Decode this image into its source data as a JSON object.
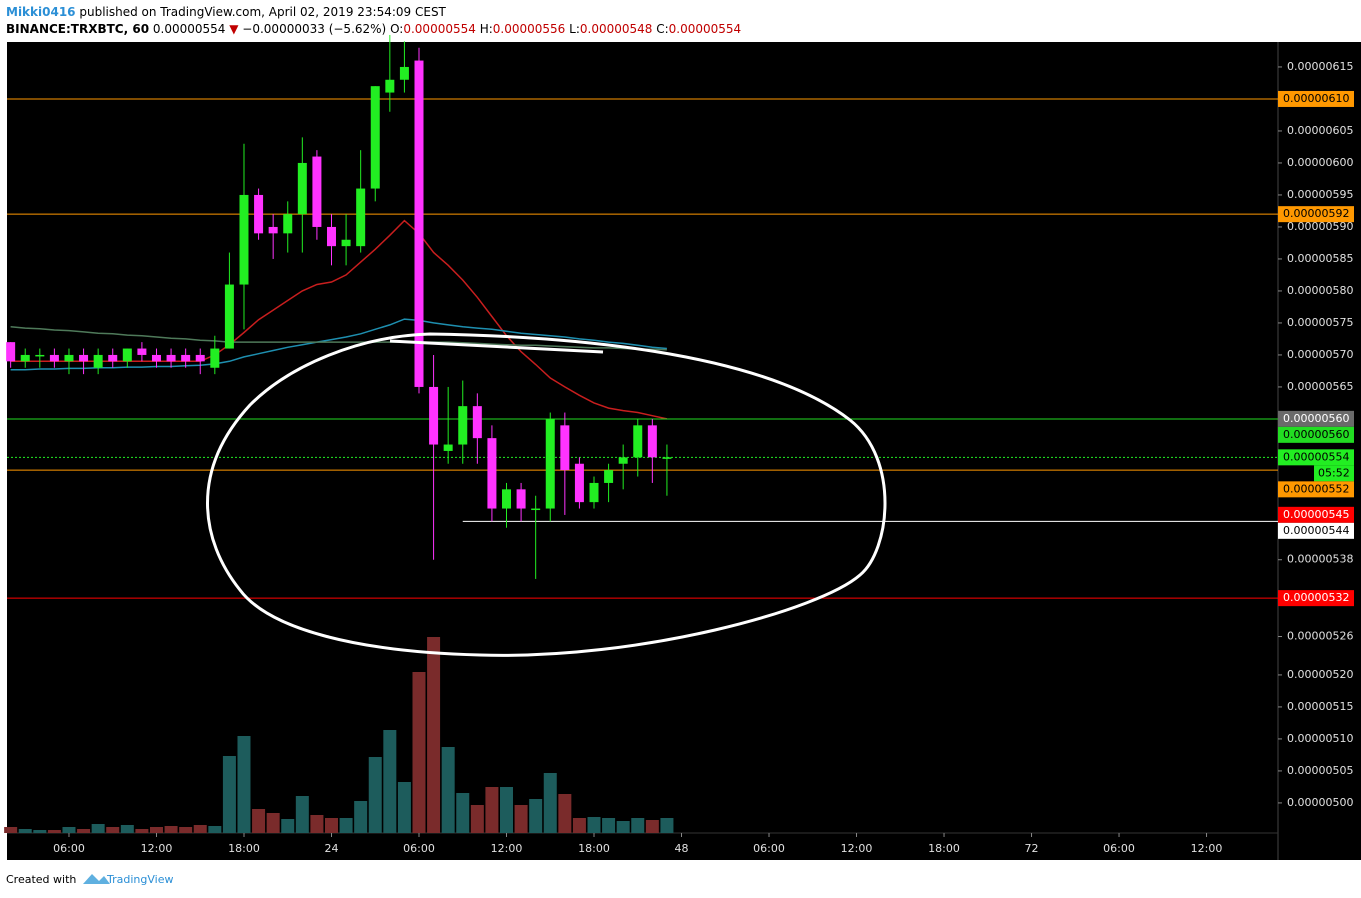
{
  "header": {
    "author": "Mikki0416",
    "published": "published on TradingView.com, April 02, 2019 23:54:09 CEST",
    "symbol": "BINANCE:TRXBTC, 60",
    "last": "0.00000554",
    "change": "−0.00000033 (−5.62%)",
    "o_label": "O:",
    "o": "0.00000554",
    "h_label": "H:",
    "h": "0.00000556",
    "l_label": "L:",
    "l": "0.00000548",
    "c_label": "C:",
    "c": "0.00000554"
  },
  "chart_data": {
    "type": "candlestick",
    "x": [
      2,
      3,
      4,
      5,
      6,
      7,
      8,
      9,
      10,
      11,
      12,
      13,
      14,
      15,
      16,
      17,
      18,
      19,
      20,
      21,
      22,
      23,
      24,
      25,
      26,
      27,
      28,
      29,
      30,
      31,
      32,
      33,
      34,
      35,
      36,
      37,
      38,
      39,
      40,
      41,
      42,
      43,
      44,
      45,
      46,
      47
    ],
    "open": [
      5.72e-06,
      5.69e-06,
      5.7e-06,
      5.7e-06,
      5.69e-06,
      5.7e-06,
      5.68e-06,
      5.7e-06,
      5.69e-06,
      5.71e-06,
      5.7e-06,
      5.7e-06,
      5.7e-06,
      5.7e-06,
      5.68e-06,
      5.71e-06,
      5.81e-06,
      5.95e-06,
      5.9e-06,
      5.89e-06,
      5.92e-06,
      6.01e-06,
      5.9e-06,
      5.87e-06,
      5.87e-06,
      5.96e-06,
      6.11e-06,
      6.13e-06,
      6.16e-06,
      5.65e-06,
      5.55e-06,
      5.56e-06,
      5.62e-06,
      5.57e-06,
      5.46e-06,
      5.49e-06,
      5.46e-06,
      5.46e-06,
      5.59e-06,
      5.53e-06,
      5.47e-06,
      5.5e-06,
      5.53e-06,
      5.54e-06,
      5.59e-06,
      5.54e-06
    ],
    "high": [
      5.72e-06,
      5.71e-06,
      5.71e-06,
      5.71e-06,
      5.71e-06,
      5.71e-06,
      5.71e-06,
      5.71e-06,
      5.71e-06,
      5.72e-06,
      5.71e-06,
      5.71e-06,
      5.71e-06,
      5.71e-06,
      5.73e-06,
      5.86e-06,
      6.03e-06,
      5.96e-06,
      5.92e-06,
      5.94e-06,
      6.04e-06,
      6.02e-06,
      5.92e-06,
      5.92e-06,
      6.02e-06,
      6.12e-06,
      6.2e-06,
      6.19e-06,
      6.18e-06,
      5.7e-06,
      5.65e-06,
      5.66e-06,
      5.64e-06,
      5.59e-06,
      5.5e-06,
      5.5e-06,
      5.48e-06,
      5.61e-06,
      5.61e-06,
      5.54e-06,
      5.51e-06,
      5.53e-06,
      5.56e-06,
      5.6e-06,
      5.6e-06,
      5.56e-06
    ],
    "low": [
      5.68e-06,
      5.68e-06,
      5.68e-06,
      5.68e-06,
      5.67e-06,
      5.67e-06,
      5.67e-06,
      5.68e-06,
      5.68e-06,
      5.69e-06,
      5.68e-06,
      5.68e-06,
      5.68e-06,
      5.67e-06,
      5.67e-06,
      5.71e-06,
      5.74e-06,
      5.88e-06,
      5.85e-06,
      5.86e-06,
      5.86e-06,
      5.88e-06,
      5.84e-06,
      5.84e-06,
      5.86e-06,
      5.94e-06,
      6.08e-06,
      6.11e-06,
      5.64e-06,
      5.38e-06,
      5.53e-06,
      5.53e-06,
      5.53e-06,
      5.44e-06,
      5.43e-06,
      5.44e-06,
      5.35e-06,
      5.44e-06,
      5.45e-06,
      5.46e-06,
      5.46e-06,
      5.47e-06,
      5.49e-06,
      5.51e-06,
      5.5e-06,
      5.48e-06
    ],
    "close": [
      5.69e-06,
      5.7e-06,
      5.7e-06,
      5.69e-06,
      5.7e-06,
      5.69e-06,
      5.7e-06,
      5.69e-06,
      5.71e-06,
      5.7e-06,
      5.69e-06,
      5.69e-06,
      5.69e-06,
      5.69e-06,
      5.71e-06,
      5.81e-06,
      5.95e-06,
      5.89e-06,
      5.89e-06,
      5.92e-06,
      6e-06,
      5.9e-06,
      5.87e-06,
      5.88e-06,
      5.96e-06,
      6.12e-06,
      6.13e-06,
      6.15e-06,
      5.65e-06,
      5.56e-06,
      5.56e-06,
      5.62e-06,
      5.57e-06,
      5.46e-06,
      5.49e-06,
      5.46e-06,
      5.46e-06,
      5.6e-06,
      5.52e-06,
      5.47e-06,
      5.5e-06,
      5.52e-06,
      5.54e-06,
      5.59e-06,
      5.54e-06,
      5.54e-06
    ],
    "up_color": "#22ee22",
    "down_color": "#ff33ff",
    "volume": {
      "up_color": "#1d5c5c",
      "down_color": "#7a2b2b",
      "values": [
        6,
        4,
        3,
        3,
        6,
        4,
        9,
        6,
        8,
        4,
        6,
        7,
        6,
        8,
        7,
        77,
        97,
        24,
        20,
        14,
        37,
        18,
        15,
        15,
        32,
        76,
        103,
        51,
        161,
        196,
        86,
        40,
        28,
        46,
        46,
        28,
        34,
        60,
        39,
        15,
        16,
        15,
        12,
        15,
        13,
        15
      ]
    },
    "moving_averages": [
      {
        "color": "#c81e1e",
        "values": [
          5.69e-06,
          5.69e-06,
          5.69e-06,
          5.69e-06,
          5.69e-06,
          5.69e-06,
          5.69e-06,
          5.69e-06,
          5.69e-06,
          5.69e-06,
          5.69e-06,
          5.69e-06,
          5.69e-06,
          5.69e-06,
          5.7e-06,
          5.716e-06,
          5.735e-06,
          5.755e-06,
          5.77e-06,
          5.785e-06,
          5.8e-06,
          5.81e-06,
          5.814e-06,
          5.825e-06,
          5.845e-06,
          5.865e-06,
          5.887e-06,
          5.91e-06,
          5.89e-06,
          5.86e-06,
          5.84e-06,
          5.817e-06,
          5.79e-06,
          5.76e-06,
          5.73e-06,
          5.705e-06,
          5.685e-06,
          5.664e-06,
          5.65e-06,
          5.637e-06,
          5.625e-06,
          5.617e-06,
          5.613e-06,
          5.61e-06,
          5.605e-06,
          5.6e-06
        ]
      },
      {
        "color": "#1e8fb0",
        "values": [
          5.677e-06,
          5.677e-06,
          5.678e-06,
          5.678e-06,
          5.679e-06,
          5.679e-06,
          5.68e-06,
          5.68e-06,
          5.681e-06,
          5.681e-06,
          5.682e-06,
          5.682e-06,
          5.683e-06,
          5.684e-06,
          5.686e-06,
          5.69e-06,
          5.697e-06,
          5.702e-06,
          5.707e-06,
          5.712e-06,
          5.716e-06,
          5.72e-06,
          5.724e-06,
          5.728e-06,
          5.733e-06,
          5.74e-06,
          5.747e-06,
          5.756e-06,
          5.754e-06,
          5.75e-06,
          5.747e-06,
          5.744e-06,
          5.742e-06,
          5.74e-06,
          5.737e-06,
          5.734e-06,
          5.732e-06,
          5.73e-06,
          5.728e-06,
          5.725e-06,
          5.723e-06,
          5.72e-06,
          5.718e-06,
          5.715e-06,
          5.712e-06,
          5.71e-06
        ]
      },
      {
        "color": "#4f7a5a",
        "values": [
          5.744e-06,
          5.742e-06,
          5.741e-06,
          5.739e-06,
          5.738e-06,
          5.736e-06,
          5.734e-06,
          5.733e-06,
          5.731e-06,
          5.73e-06,
          5.728e-06,
          5.726e-06,
          5.725e-06,
          5.723e-06,
          5.722e-06,
          5.72e-06,
          5.72e-06,
          5.72e-06,
          5.72e-06,
          5.72e-06,
          5.72e-06,
          5.72e-06,
          5.72e-06,
          5.72e-06,
          5.72e-06,
          5.72e-06,
          5.72e-06,
          5.72e-06,
          5.72e-06,
          5.72e-06,
          5.72e-06,
          5.719e-06,
          5.718e-06,
          5.717e-06,
          5.716e-06,
          5.715e-06,
          5.715e-06,
          5.714e-06,
          5.713e-06,
          5.712e-06,
          5.711e-06,
          5.711e-06,
          5.71e-06,
          5.709e-06,
          5.709e-06,
          5.708e-06
        ]
      }
    ],
    "xlim": [
      1.75,
      88.9
    ],
    "xticks": [
      {
        "value": 6,
        "label": "06:00"
      },
      {
        "value": 12,
        "label": "12:00"
      },
      {
        "value": 18,
        "label": "18:00"
      },
      24,
      {
        "value": 30,
        "label": "06:00"
      },
      {
        "value": 36,
        "label": "12:00"
      },
      {
        "value": 42,
        "label": "18:00"
      },
      48,
      {
        "value": 54,
        "label": "06:00"
      },
      {
        "value": 60,
        "label": "12:00"
      },
      {
        "value": 66,
        "label": "18:00"
      },
      72,
      {
        "value": 78,
        "label": "06:00"
      },
      {
        "value": 84,
        "label": "12:00"
      }
    ],
    "xtick_label_map": null,
    "ylim": [
      4.953e-06,
      6.189e-06
    ],
    "yticks": [
      {
        "value": 6.15e-06,
        "label": "0.00000615"
      },
      {
        "value": 6.05e-06,
        "label": "0.00000605"
      },
      {
        "value": 6e-06,
        "label": "0.00000600"
      },
      {
        "value": 5.95e-06,
        "label": "0.00000595"
      },
      {
        "value": 5.9e-06,
        "label": "0.00000590"
      },
      {
        "value": 5.85e-06,
        "label": "0.00000585"
      },
      {
        "value": 5.8e-06,
        "label": "0.00000580"
      },
      {
        "value": 5.75e-06,
        "label": "0.00000575"
      },
      {
        "value": 5.7e-06,
        "label": "0.00000570"
      },
      {
        "value": 5.65e-06,
        "label": "0.00000565"
      },
      {
        "value": 5.38e-06,
        "label": "0.00000538"
      },
      {
        "value": 5.26e-06,
        "label": "0.00000526"
      },
      {
        "value": 5.2e-06,
        "label": "0.00000520"
      },
      {
        "value": 5.15e-06,
        "label": "0.00000515"
      },
      {
        "value": 5.1e-06,
        "label": "0.00000510"
      },
      {
        "value": 5.05e-06,
        "label": "0.00000505"
      },
      {
        "value": 5e-06,
        "label": "0.00000500"
      }
    ],
    "levels": [
      {
        "value": 6.1e-06,
        "label": "0.00000610",
        "color": "#ff9800",
        "text_color": "#000000",
        "style": "solid"
      },
      {
        "value": 5.92e-06,
        "label": "0.00000592",
        "color": "#ff9800",
        "text_color": "#000000",
        "style": "solid"
      },
      {
        "value": 5.6e-06,
        "label": "0.00000560",
        "color": "#22dd22",
        "text_color": "#000000",
        "style": "solid"
      },
      {
        "value": 5.54e-06,
        "label": "0.00000554",
        "color": "#22ee22",
        "text_color": "#000000",
        "style": "dotted",
        "countdown": "05:52"
      },
      {
        "value": 5.52e-06,
        "label": "0.00000552",
        "color": "#ff9800",
        "text_color": "#000000",
        "style": "solid"
      },
      {
        "value": 5.44e-06,
        "label": "0.00000544",
        "color": "#ffffff",
        "text_color": "#000000",
        "style": "solid",
        "x_start": 33
      },
      {
        "value": 5.32e-06,
        "label": "0.00000532",
        "color": "#ff0000",
        "text_color": "#ffffff",
        "style": "solid"
      }
    ],
    "axis_markers": [
      {
        "value": 5.6e-06,
        "label": "0.00000560",
        "color": "#6a6a6a",
        "text_color": "#ffffff"
      },
      {
        "value": 5.45e-06,
        "label": "0.00000545",
        "color": "#ff0000",
        "text_color": "#ffffff"
      }
    ]
  },
  "footer": {
    "created": "Created with",
    "brand": "TradingView"
  }
}
